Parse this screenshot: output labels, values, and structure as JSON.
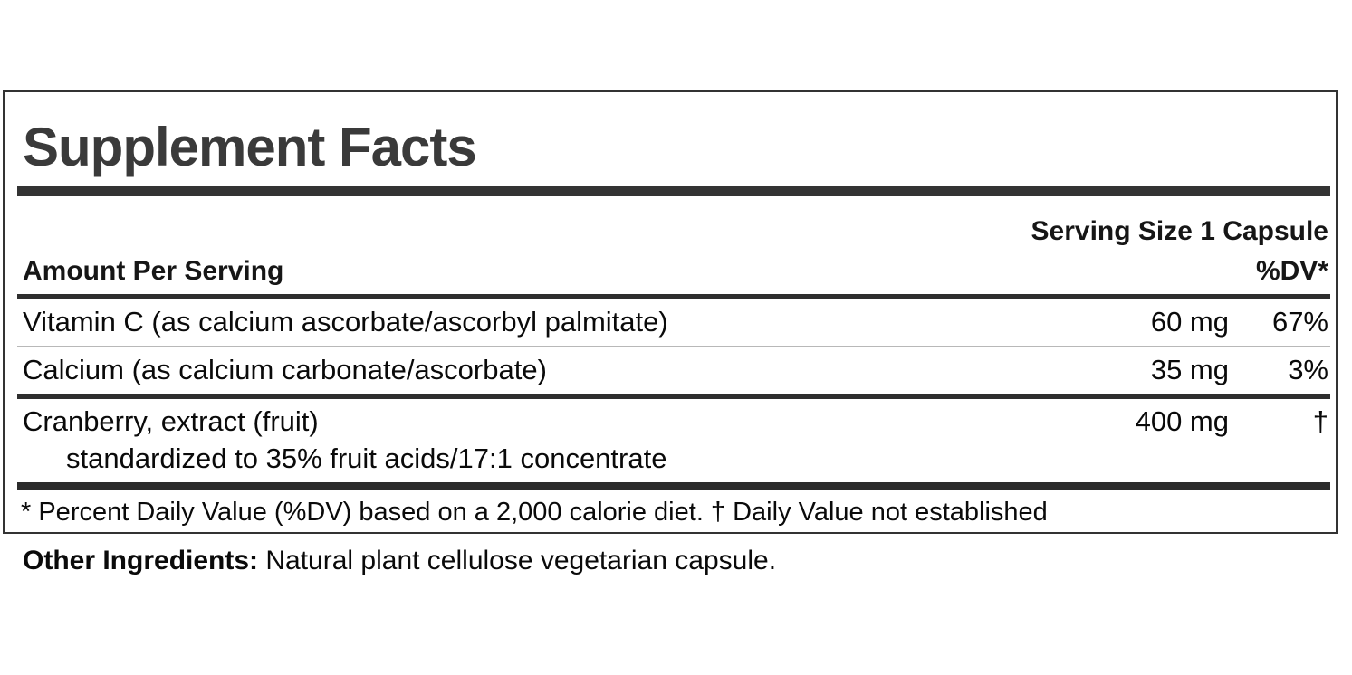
{
  "label": {
    "title": "Supplement Facts",
    "serving_size": "Serving Size 1 Capsule",
    "header": {
      "amount_per_serving": "Amount Per Serving",
      "dv": "%DV*"
    },
    "rows": [
      {
        "name": "Vitamin C (as calcium ascorbate/ascorbyl palmitate)",
        "amount": "60 mg",
        "dv": "67%"
      },
      {
        "name": "Calcium (as calcium carbonate/ascorbate)",
        "amount": "35 mg",
        "dv": "3%"
      },
      {
        "name": "Cranberry, extract (fruit)",
        "sub": "standardized to 35% fruit acids/17:1 concentrate",
        "amount": "400 mg",
        "dv": "†"
      }
    ],
    "footnote": "* Percent Daily Value (%DV) based on a 2,000 calorie diet. † Daily Value not established",
    "other_ingredients": {
      "label": "Other Ingredients:",
      "text": " Natural plant cellulose vegetarian capsule."
    }
  },
  "colors": {
    "title": "#3a3a3a",
    "bars": "#2e2e2e",
    "text": "#0a0a0a",
    "hairline": "#b8b8b8",
    "background": "#ffffff"
  }
}
